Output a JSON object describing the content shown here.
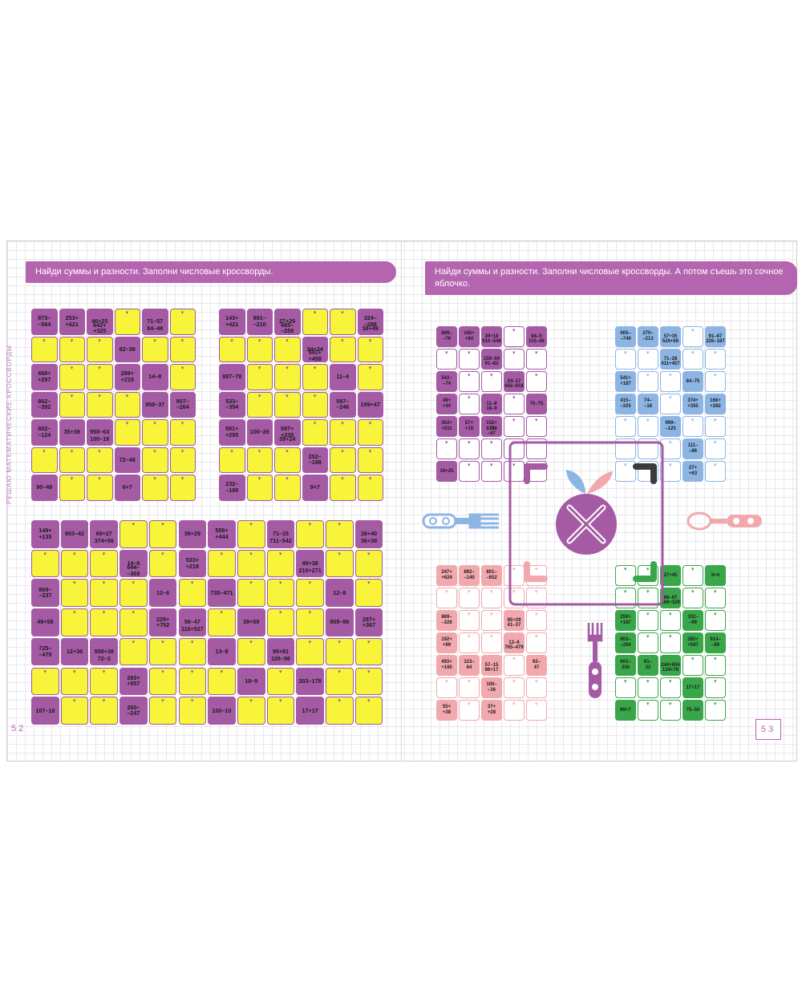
{
  "colors": {
    "purple": "#a45ba4",
    "yellow": "#f8f43a",
    "lilac": "#b565b0",
    "blue": "#8db5e4",
    "pink": "#f2a9ae",
    "green": "#3aa64a"
  },
  "left_page": {
    "instruction": "Найди суммы и разности. Заполни числовые кроссворды.",
    "side_label": "РЕШАЮ МАТЕМАТИЧЕСКИЕ КРОССВОРДЫ",
    "page_number": "52"
  },
  "right_page": {
    "instruction": "Найди суммы и разности. Заполни числовые кроссворды. А потом съешь это сочное яблочко.",
    "page_number": "53"
  },
  "puzzles": [
    {
      "id": "A",
      "cols": 6,
      "rows": 7,
      "clues": [
        {
          "r": 0,
          "c": 0,
          "t": "873–\n–584"
        },
        {
          "r": 0,
          "c": 1,
          "t": "253+\n+621"
        },
        {
          "r": 0,
          "c": 2,
          "t": "46+25"
        },
        {
          "r": 0,
          "c": 2,
          "t2": "642+\n+325"
        },
        {
          "r": 0,
          "c": 4,
          "t": "71–57"
        },
        {
          "r": 0,
          "c": 4,
          "t2": "84–48"
        },
        {
          "r": 1,
          "c": 3,
          "t": "82–39"
        },
        {
          "r": 2,
          "c": 3,
          "t": "289+\n+219"
        },
        {
          "r": 2,
          "c": 0,
          "t": "468+\n+297"
        },
        {
          "r": 2,
          "c": 4,
          "t": "14–8"
        },
        {
          "r": 3,
          "c": 0,
          "t": "862–\n–392"
        },
        {
          "r": 3,
          "c": 4,
          "t": "958–37"
        },
        {
          "r": 3,
          "c": 5,
          "t": "807–\n–264"
        },
        {
          "r": 4,
          "c": 0,
          "t": "802–\n–124"
        },
        {
          "r": 4,
          "c": 1,
          "t": "35+39"
        },
        {
          "r": 4,
          "c": 2,
          "t": "958–63"
        },
        {
          "r": 4,
          "c": 2,
          "t2": "100–18"
        },
        {
          "r": 5,
          "c": 3,
          "t": "72–48"
        },
        {
          "r": 6,
          "c": 0,
          "t": "90–48"
        },
        {
          "r": 6,
          "c": 3,
          "t": "6+7"
        }
      ]
    },
    {
      "id": "B",
      "cols": 6,
      "rows": 7,
      "clues": [
        {
          "r": 0,
          "c": 0,
          "t": "143+\n+421"
        },
        {
          "r": 0,
          "c": 1,
          "t": "891–\n–210"
        },
        {
          "r": 0,
          "c": 2,
          "t": "27+26"
        },
        {
          "r": 0,
          "c": 2,
          "t2": "665–\n–258"
        },
        {
          "r": 0,
          "c": 5,
          "t": "324–\n–288"
        },
        {
          "r": 0,
          "c": 5,
          "t2": "38+49"
        },
        {
          "r": 1,
          "c": 3,
          "t": "34+34"
        },
        {
          "r": 1,
          "c": 3,
          "t2": "541+\n+458"
        },
        {
          "r": 2,
          "c": 0,
          "t": "887–78"
        },
        {
          "r": 2,
          "c": 4,
          "t": "11–4"
        },
        {
          "r": 3,
          "c": 0,
          "t": "533–\n–354"
        },
        {
          "r": 3,
          "c": 4,
          "t": "597–\n–246"
        },
        {
          "r": 3,
          "c": 5,
          "t": "199+47"
        },
        {
          "r": 4,
          "c": 0,
          "t": "581+\n+295"
        },
        {
          "r": 4,
          "c": 1,
          "t": "100–26"
        },
        {
          "r": 4,
          "c": 2,
          "t": "697+\n+235"
        },
        {
          "r": 4,
          "c": 2,
          "t2": "39+24"
        },
        {
          "r": 5,
          "c": 3,
          "t": "252–\n–198"
        },
        {
          "r": 6,
          "c": 0,
          "t": "232–\n–189"
        },
        {
          "r": 6,
          "c": 3,
          "t": "9+7"
        }
      ]
    },
    {
      "id": "C",
      "cols": 12,
      "rows": 7,
      "clues": [
        {
          "r": 0,
          "c": 0,
          "t": "149+\n+135"
        },
        {
          "r": 0,
          "c": 1,
          "t": "903–42"
        },
        {
          "r": 0,
          "c": 2,
          "t": "69+27"
        },
        {
          "r": 0,
          "c": 2,
          "t2": "374+56"
        },
        {
          "r": 0,
          "c": 5,
          "t": "39+29"
        },
        {
          "r": 0,
          "c": 6,
          "t": "508+\n+444"
        },
        {
          "r": 0,
          "c": 8,
          "t": "71–15"
        },
        {
          "r": 0,
          "c": 8,
          "t2": "711–542"
        },
        {
          "r": 0,
          "c": 11,
          "t": "28+40"
        },
        {
          "r": 0,
          "c": 11,
          "t2": "36+38"
        },
        {
          "r": 1,
          "c": 3,
          "t": "14–6"
        },
        {
          "r": 1,
          "c": 3,
          "t2": "644–\n–369"
        },
        {
          "r": 1,
          "c": 5,
          "t": "533+\n+218"
        },
        {
          "r": 1,
          "c": 9,
          "t": "49+38"
        },
        {
          "r": 1,
          "c": 9,
          "t2": "210+271"
        },
        {
          "r": 2,
          "c": 0,
          "t": "869–\n–237"
        },
        {
          "r": 2,
          "c": 4,
          "t": "12–6"
        },
        {
          "r": 2,
          "c": 6,
          "t": "735–471"
        },
        {
          "r": 2,
          "c": 10,
          "t": "12–8"
        },
        {
          "r": 3,
          "c": 0,
          "t": "49+58"
        },
        {
          "r": 3,
          "c": 4,
          "t": "229+\n+752"
        },
        {
          "r": 3,
          "c": 5,
          "t": "56–47"
        },
        {
          "r": 3,
          "c": 5,
          "t2": "116+527"
        },
        {
          "r": 3,
          "c": 7,
          "t": "39+59"
        },
        {
          "r": 3,
          "c": 10,
          "t": "809–86"
        },
        {
          "r": 3,
          "c": 11,
          "t": "287+\n+367"
        },
        {
          "r": 4,
          "c": 0,
          "t": "725–\n–479"
        },
        {
          "r": 4,
          "c": 1,
          "t": "12+36"
        },
        {
          "r": 4,
          "c": 2,
          "t": "558+38"
        },
        {
          "r": 4,
          "c": 2,
          "t2": "72–3"
        },
        {
          "r": 4,
          "c": 6,
          "t": "13–8"
        },
        {
          "r": 4,
          "c": 8,
          "t": "95+81"
        },
        {
          "r": 4,
          "c": 8,
          "t2": "126–56"
        },
        {
          "r": 5,
          "c": 3,
          "t": "283+\n+557"
        },
        {
          "r": 5,
          "c": 7,
          "t": "18–9"
        },
        {
          "r": 5,
          "c": 9,
          "t": "203–178"
        },
        {
          "r": 6,
          "c": 0,
          "t": "107–18"
        },
        {
          "r": 6,
          "c": 3,
          "t": "260–\n–247"
        },
        {
          "r": 6,
          "c": 6,
          "t": "100–10"
        },
        {
          "r": 6,
          "c": 9,
          "t": "17+17"
        }
      ]
    },
    {
      "id": "D",
      "cols": 5,
      "rows": 7,
      "clues": [
        {
          "r": 0,
          "c": 0,
          "t": "899–\n–76"
        },
        {
          "r": 0,
          "c": 1,
          "t": "165+\n+84"
        },
        {
          "r": 0,
          "c": 2,
          "t": "39+18"
        },
        {
          "r": 0,
          "c": 2,
          "t2": "910–548"
        },
        {
          "r": 0,
          "c": 4,
          "t": "84–5"
        },
        {
          "r": 0,
          "c": 4,
          "t2": "115–48"
        },
        {
          "r": 1,
          "c": 2,
          "t": "150–54"
        },
        {
          "r": 1,
          "c": 2,
          "t2": "91–83"
        },
        {
          "r": 2,
          "c": 0,
          "t": "542–\n–74"
        },
        {
          "r": 2,
          "c": 3,
          "t": "24–17"
        },
        {
          "r": 2,
          "c": 3,
          "t2": "642–618"
        },
        {
          "r": 3,
          "c": 0,
          "t": "48+\n+44"
        },
        {
          "r": 3,
          "c": 2,
          "t": "11–9"
        },
        {
          "r": 3,
          "c": 2,
          "t2": "18–9"
        },
        {
          "r": 3,
          "c": 4,
          "t": "76–75"
        },
        {
          "r": 4,
          "c": 0,
          "t": "363+\n+511"
        },
        {
          "r": 4,
          "c": 1,
          "t": "57+\n+18"
        },
        {
          "r": 4,
          "c": 2,
          "t": "152+\n+789"
        },
        {
          "r": 4,
          "c": 2,
          "t2": "135–\n–87"
        },
        {
          "r": 6,
          "c": 0,
          "t": "34+25"
        }
      ]
    },
    {
      "id": "E",
      "cols": 5,
      "rows": 7,
      "clues": [
        {
          "r": 0,
          "c": 0,
          "t": "905–\n–749"
        },
        {
          "r": 0,
          "c": 1,
          "t": "270–\n–213"
        },
        {
          "r": 0,
          "c": 2,
          "t": "57+35"
        },
        {
          "r": 0,
          "c": 2,
          "t2": "526+89"
        },
        {
          "r": 0,
          "c": 4,
          "t": "91–67"
        },
        {
          "r": 0,
          "c": 4,
          "t2": "226–187"
        },
        {
          "r": 1,
          "c": 2,
          "t": "71–28"
        },
        {
          "r": 1,
          "c": 2,
          "t2": "411+457"
        },
        {
          "r": 2,
          "c": 0,
          "t": "541+\n+187"
        },
        {
          "r": 2,
          "c": 3,
          "t": "84–75"
        },
        {
          "r": 3,
          "c": 0,
          "t": "415–\n–325"
        },
        {
          "r": 3,
          "c": 1,
          "t": "74–\n–18"
        },
        {
          "r": 3,
          "c": 3,
          "t": "374+\n+355"
        },
        {
          "r": 3,
          "c": 4,
          "t": "168+\n+282"
        },
        {
          "r": 4,
          "c": 2,
          "t": "999–\n–125"
        },
        {
          "r": 5,
          "c": 3,
          "t": "111–\n–86"
        },
        {
          "r": 6,
          "c": 3,
          "t": "27+\n+63"
        }
      ]
    },
    {
      "id": "F",
      "cols": 5,
      "rows": 7,
      "clues": [
        {
          "r": 0,
          "c": 0,
          "t": "247+\n+624"
        },
        {
          "r": 0,
          "c": 1,
          "t": "892–\n–140"
        },
        {
          "r": 0,
          "c": 2,
          "t": "801–\n–652"
        },
        {
          "r": 2,
          "c": 0,
          "t": "869–\n–326"
        },
        {
          "r": 2,
          "c": 3,
          "t": "85+29"
        },
        {
          "r": 2,
          "c": 3,
          "t2": "41–37"
        },
        {
          "r": 3,
          "c": 0,
          "t": "192+\n+99"
        },
        {
          "r": 3,
          "c": 3,
          "t": "13–6"
        },
        {
          "r": 3,
          "c": 3,
          "t2": "765–479"
        },
        {
          "r": 4,
          "c": 0,
          "t": "493+\n+165"
        },
        {
          "r": 4,
          "c": 1,
          "t": "123–\n64"
        },
        {
          "r": 4,
          "c": 2,
          "t": "57–15"
        },
        {
          "r": 4,
          "c": 2,
          "t2": "66+17"
        },
        {
          "r": 4,
          "c": 4,
          "t": "92–\n47"
        },
        {
          "r": 5,
          "c": 2,
          "t": "100–\n–16"
        },
        {
          "r": 6,
          "c": 0,
          "t": "55+\n+38"
        },
        {
          "r": 6,
          "c": 2,
          "t": "37+\n+28"
        }
      ]
    },
    {
      "id": "G",
      "cols": 5,
      "rows": 7,
      "clues": [
        {
          "r": 0,
          "c": 2,
          "t": "27+45"
        },
        {
          "r": 0,
          "c": 4,
          "t": "9+4"
        },
        {
          "r": 1,
          "c": 2,
          "t": "88–67"
        },
        {
          "r": 1,
          "c": 2,
          "t2": "369+329"
        },
        {
          "r": 2,
          "c": 0,
          "t": "259+\n+187"
        },
        {
          "r": 2,
          "c": 3,
          "t": "102–\n–99"
        },
        {
          "r": 3,
          "c": 0,
          "t": "803–\n–294"
        },
        {
          "r": 3,
          "c": 3,
          "t": "385+\n+547"
        },
        {
          "r": 3,
          "c": 4,
          "t": "914–\n–69"
        },
        {
          "r": 4,
          "c": 0,
          "t": "601–\n356"
        },
        {
          "r": 4,
          "c": 1,
          "t": "81–\n32"
        },
        {
          "r": 4,
          "c": 2,
          "t": "244+654"
        },
        {
          "r": 4,
          "c": 2,
          "t2": "134+78"
        },
        {
          "r": 5,
          "c": 3,
          "t": "17+17"
        },
        {
          "r": 6,
          "c": 0,
          "t": "89+7"
        },
        {
          "r": 6,
          "c": 3,
          "t": "75–50"
        }
      ]
    }
  ]
}
